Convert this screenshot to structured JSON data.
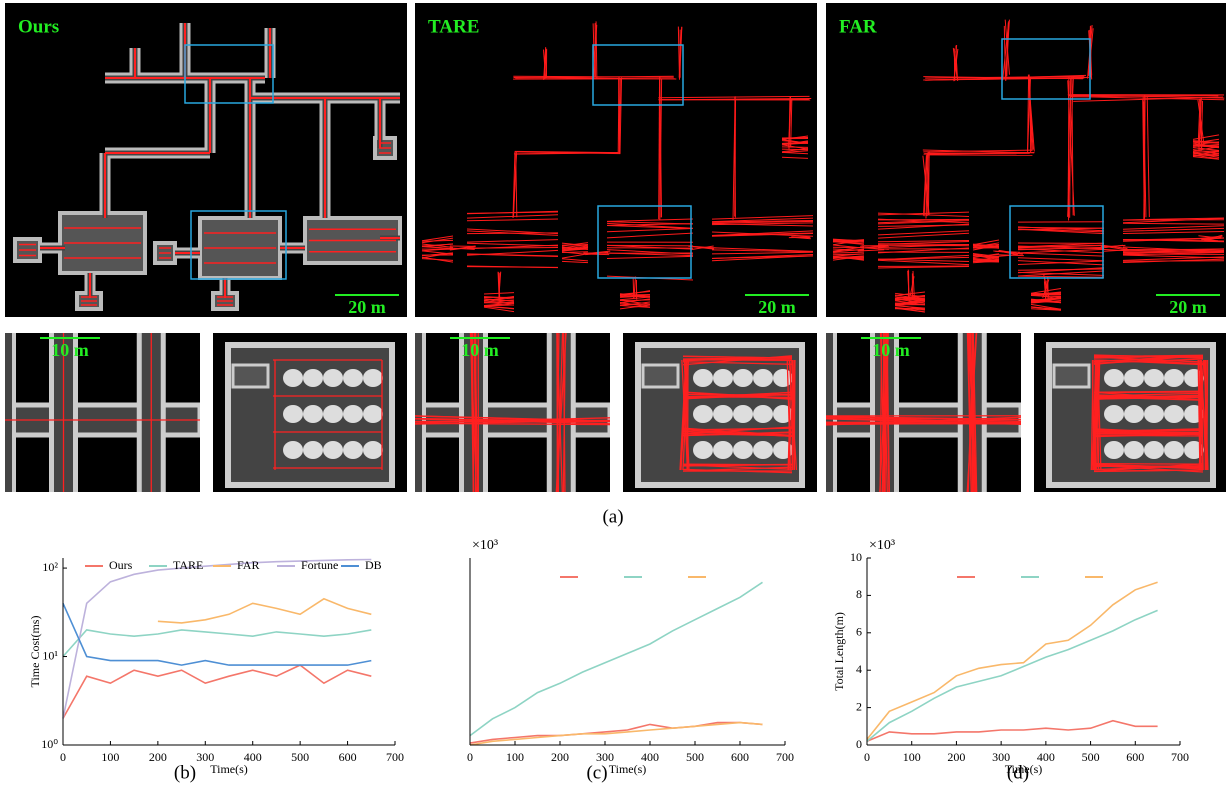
{
  "figure_a": {
    "panels": [
      {
        "method": "Ours",
        "scale": "20 m",
        "zoom_scale": "10 m"
      },
      {
        "method": "TARE",
        "scale": "20 m",
        "zoom_scale": "10 m"
      },
      {
        "method": "FAR",
        "scale": "20 m",
        "zoom_scale": "10 m"
      }
    ],
    "caption": "(a)"
  },
  "chart_data": [
    {
      "type": "line",
      "caption": "(b)",
      "x_label": "Time(s)",
      "y_label": "Time Cost(ms)",
      "log_scale": true,
      "legend": "top",
      "x": [
        0,
        50,
        100,
        150,
        200,
        250,
        300,
        350,
        400,
        450,
        500,
        550,
        600,
        650
      ],
      "xlim": [
        0,
        700
      ],
      "xticks": [
        0,
        100,
        200,
        300,
        400,
        500,
        600,
        700
      ],
      "ylim": [
        1,
        130
      ],
      "yticks": [
        {
          "value": 1,
          "label": "10⁰"
        },
        {
          "value": 10,
          "label": "10¹"
        },
        {
          "value": 100,
          "label": "10²"
        }
      ],
      "series": [
        {
          "name": "Ours",
          "color": "#f4766a",
          "values": [
            2,
            6,
            5,
            7,
            6,
            7,
            5,
            6,
            7,
            6,
            8,
            5,
            7,
            6
          ]
        },
        {
          "name": "TARE",
          "color": "#8ed4c4",
          "values": [
            10,
            20,
            18,
            17,
            18,
            20,
            19,
            18,
            17,
            19,
            18,
            17,
            18,
            20
          ]
        },
        {
          "name": "FAR",
          "color": "#f9b86a",
          "values": [
            null,
            null,
            null,
            null,
            25,
            24,
            26,
            30,
            40,
            35,
            30,
            45,
            35,
            30
          ]
        },
        {
          "name": "Fortune",
          "color": "#bdb2dc",
          "values": [
            2,
            40,
            70,
            85,
            95,
            100,
            105,
            110,
            115,
            118,
            120,
            122,
            124,
            125
          ]
        },
        {
          "name": "DB",
          "color": "#4e8fd4",
          "values": [
            40,
            10,
            9,
            9,
            9,
            8,
            9,
            8,
            8,
            8,
            8,
            8,
            8,
            9
          ]
        }
      ]
    },
    {
      "type": "line",
      "caption": "(c)",
      "x_label": "Time(s)",
      "y_multiplier": "×10³",
      "legend": "top",
      "x": [
        0,
        50,
        100,
        150,
        200,
        250,
        300,
        350,
        400,
        450,
        500,
        550,
        600,
        650
      ],
      "xlim": [
        0,
        700
      ],
      "xticks": [
        0,
        100,
        200,
        300,
        400,
        500,
        600,
        700
      ],
      "ylim": [
        0,
        10
      ],
      "series": [
        {
          "color": "#f4766a",
          "values": [
            0.1,
            0.3,
            0.4,
            0.5,
            0.5,
            0.6,
            0.7,
            0.8,
            1.1,
            0.9,
            1.0,
            1.2,
            1.2,
            1.1
          ]
        },
        {
          "color": "#8ed4c4",
          "values": [
            0.5,
            1.4,
            2.0,
            2.8,
            3.3,
            3.9,
            4.4,
            4.9,
            5.4,
            6.1,
            6.7,
            7.3,
            7.9,
            8.7
          ]
        },
        {
          "color": "#f9b86a",
          "values": [
            0,
            0.2,
            0.3,
            0.4,
            0.5,
            0.6,
            0.6,
            0.7,
            0.8,
            0.9,
            1.0,
            1.1,
            1.2,
            1.1
          ]
        }
      ]
    },
    {
      "type": "line",
      "caption": "(d)",
      "x_label": "Time(s)",
      "y_label": "Total Length(m)",
      "y_multiplier": "×10³",
      "legend": "top",
      "x": [
        0,
        50,
        100,
        150,
        200,
        250,
        300,
        350,
        400,
        450,
        500,
        550,
        600,
        650
      ],
      "xlim": [
        0,
        700
      ],
      "xticks": [
        0,
        100,
        200,
        300,
        400,
        500,
        600,
        700
      ],
      "ylim": [
        0,
        10
      ],
      "yticks": [
        0,
        2,
        4,
        6,
        8,
        10
      ],
      "series": [
        {
          "color": "#f4766a",
          "values": [
            0.2,
            0.7,
            0.6,
            0.6,
            0.7,
            0.7,
            0.8,
            0.8,
            0.9,
            0.8,
            0.9,
            1.3,
            1.0,
            1.0
          ]
        },
        {
          "color": "#8ed4c4",
          "values": [
            0.2,
            1.2,
            1.8,
            2.5,
            3.1,
            3.4,
            3.7,
            4.2,
            4.7,
            5.1,
            5.6,
            6.1,
            6.7,
            7.2
          ]
        },
        {
          "color": "#f9b86a",
          "values": [
            0.3,
            1.8,
            2.3,
            2.8,
            3.7,
            4.1,
            4.3,
            4.4,
            5.4,
            5.6,
            6.4,
            7.5,
            8.3,
            8.7
          ]
        }
      ]
    }
  ]
}
